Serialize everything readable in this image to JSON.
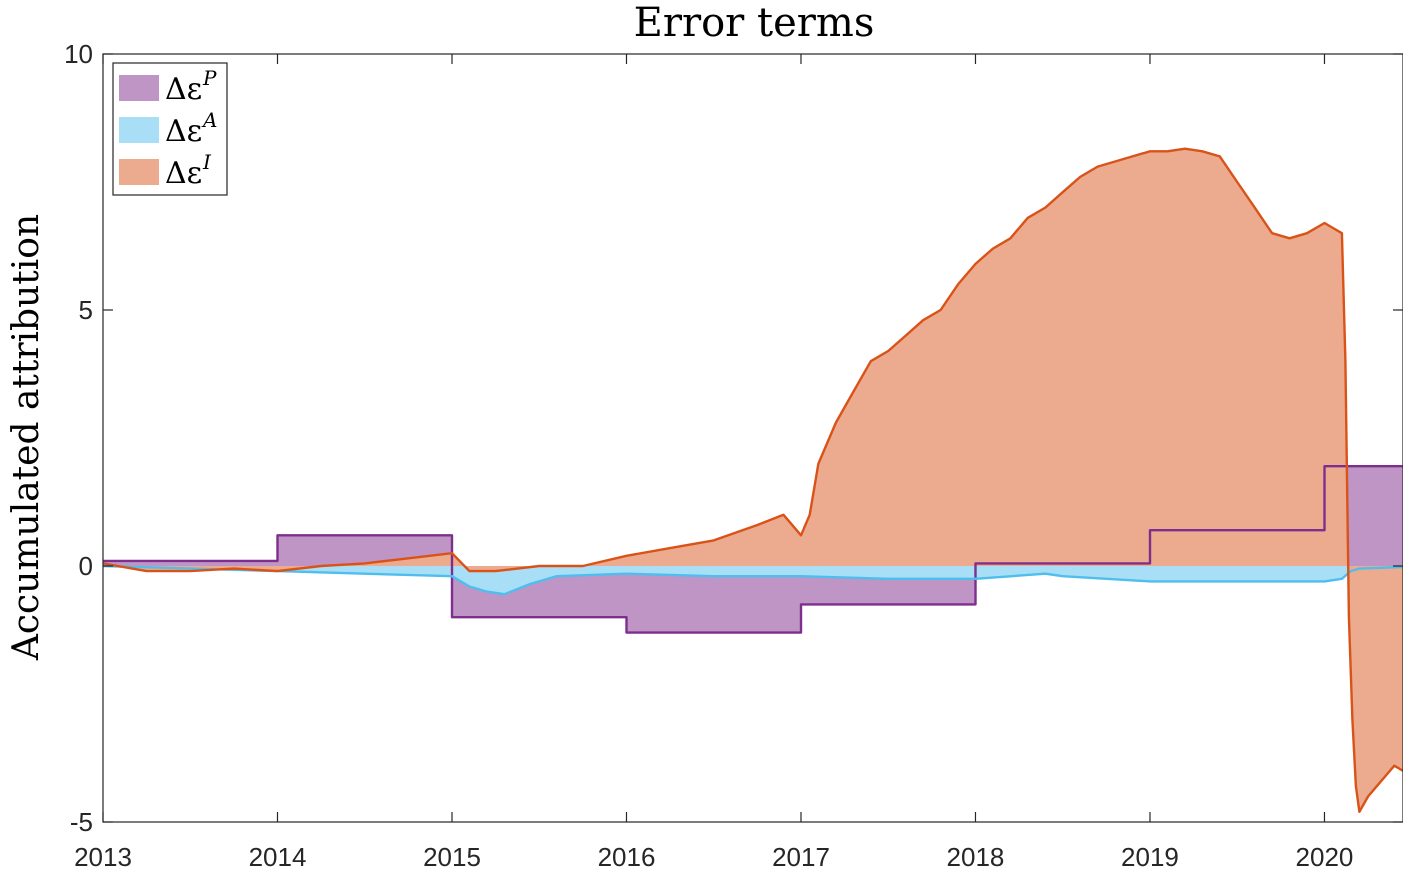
{
  "chart_data": {
    "type": "area",
    "title": "Error terms",
    "xlabel": "",
    "ylabel": "Accumulated attribution",
    "xlim": [
      2013,
      2020.45
    ],
    "ylim": [
      -5,
      10
    ],
    "yticks": [
      -5,
      0,
      5,
      10
    ],
    "ytick_labels": [
      "-5",
      "0",
      "5",
      "10"
    ],
    "xticks": [
      2013,
      2014,
      2015,
      2016,
      2017,
      2018,
      2019,
      2020
    ],
    "xtick_labels": [
      "2013",
      "2014",
      "2015",
      "2016",
      "2017",
      "2018",
      "2019",
      "2020"
    ],
    "grid": false,
    "legend_position": "top-left",
    "series": [
      {
        "name": "Δε^P",
        "name_base": "Δε",
        "name_sup": "P",
        "style": "step",
        "fill_color": "#bf95c6",
        "line_color": "#7e2f8e",
        "x": [
          2013,
          2014,
          2014,
          2015,
          2015,
          2016,
          2016,
          2017,
          2017,
          2018,
          2018,
          2019,
          2019,
          2020,
          2020,
          2020.45
        ],
        "y": [
          0.1,
          0.1,
          0.6,
          0.6,
          -1.0,
          -1.0,
          -1.3,
          -1.3,
          -0.75,
          -0.75,
          0.05,
          0.05,
          0.7,
          0.7,
          1.95,
          1.95
        ]
      },
      {
        "name": "Δε^A",
        "name_base": "Δε",
        "name_sup": "A",
        "style": "line",
        "fill_color": "#a8dff6",
        "line_color": "#4dbeee",
        "x": [
          2013,
          2013.5,
          2014,
          2014.5,
          2015,
          2015.1,
          2015.2,
          2015.3,
          2015.45,
          2015.6,
          2016,
          2016.5,
          2017,
          2017.5,
          2018,
          2018.4,
          2018.5,
          2019,
          2019.5,
          2020,
          2020.1,
          2020.15,
          2020.2,
          2020.45
        ],
        "y": [
          0,
          -0.05,
          -0.1,
          -0.15,
          -0.2,
          -0.4,
          -0.5,
          -0.55,
          -0.35,
          -0.2,
          -0.15,
          -0.2,
          -0.2,
          -0.25,
          -0.25,
          -0.15,
          -0.2,
          -0.3,
          -0.3,
          -0.3,
          -0.25,
          -0.1,
          -0.05,
          -0.02
        ]
      },
      {
        "name": "Δε^I",
        "name_base": "Δε",
        "name_sup": "I",
        "style": "line",
        "fill_color": "#ecab8e",
        "line_color": "#d95319",
        "x": [
          2013,
          2013.25,
          2013.5,
          2013.75,
          2014,
          2014.25,
          2014.5,
          2014.75,
          2015,
          2015.1,
          2015.25,
          2015.5,
          2015.75,
          2016,
          2016.25,
          2016.5,
          2016.75,
          2016.9,
          2017,
          2017.05,
          2017.1,
          2017.2,
          2017.3,
          2017.4,
          2017.5,
          2017.6,
          2017.7,
          2017.8,
          2017.9,
          2018,
          2018.1,
          2018.2,
          2018.3,
          2018.4,
          2018.5,
          2018.6,
          2018.7,
          2018.8,
          2018.9,
          2019,
          2019.1,
          2019.2,
          2019.3,
          2019.4,
          2019.5,
          2019.6,
          2019.7,
          2019.8,
          2019.9,
          2020,
          2020.05,
          2020.1,
          2020.12,
          2020.14,
          2020.16,
          2020.18,
          2020.2,
          2020.25,
          2020.3,
          2020.35,
          2020.4,
          2020.45
        ],
        "y": [
          0.05,
          -0.1,
          -0.1,
          -0.05,
          -0.1,
          0,
          0.05,
          0.15,
          0.25,
          -0.1,
          -0.1,
          0,
          0,
          0.2,
          0.35,
          0.5,
          0.8,
          1.0,
          0.6,
          1.0,
          2.0,
          2.8,
          3.4,
          4.0,
          4.2,
          4.5,
          4.8,
          5.0,
          5.5,
          5.9,
          6.2,
          6.4,
          6.8,
          7.0,
          7.3,
          7.6,
          7.8,
          7.9,
          8.0,
          8.1,
          8.1,
          8.15,
          8.1,
          8.0,
          7.5,
          7.0,
          6.5,
          6.4,
          6.5,
          6.7,
          6.6,
          6.5,
          4.0,
          -1.0,
          -3.0,
          -4.3,
          -4.8,
          -4.5,
          -4.3,
          -4.1,
          -3.9,
          -4.0
        ]
      }
    ]
  }
}
